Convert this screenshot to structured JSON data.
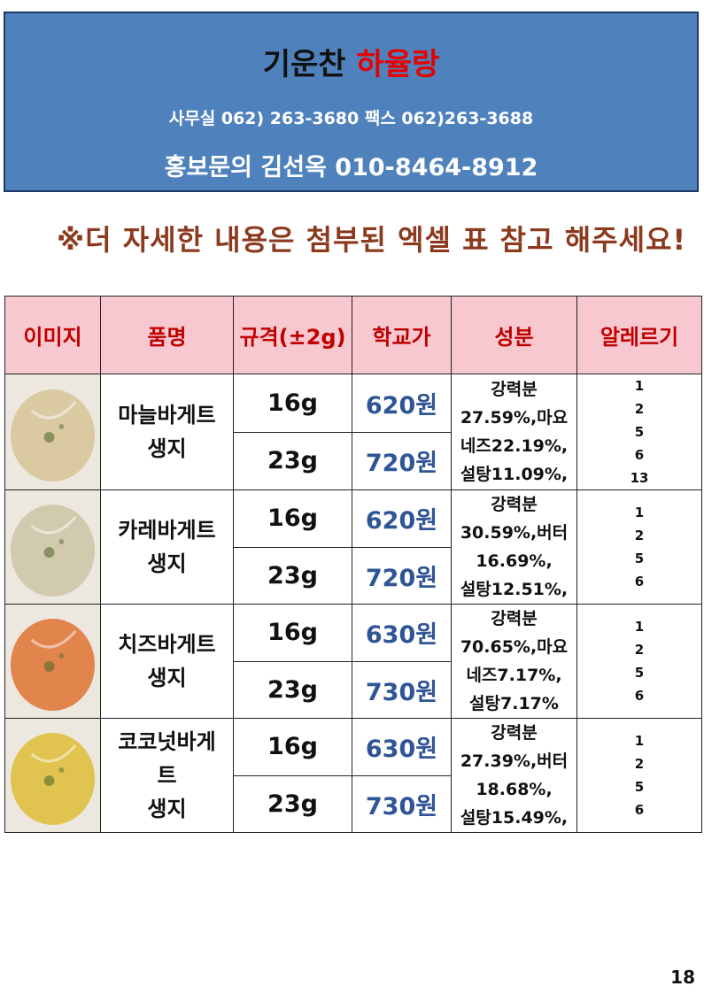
{
  "header": {
    "title_main": "기운찬",
    "title_accent": "하율랑",
    "contact_line": "사무실 062) 263-3680 팩스 062)263-3688",
    "promo_line": "홍보문의 김선옥 010-8464-8912"
  },
  "notice": "※더 자세한 내용은 첨부된 엑셀 표 참고 해주세요!",
  "table": {
    "headers": [
      "이미지",
      "품명",
      "규격(±2g)",
      "학교가",
      "성분",
      "알레르기"
    ],
    "rows": [
      {
        "name": "마늘바게트\n생지",
        "specs": [
          {
            "size": "16g",
            "price": "620원"
          },
          {
            "size": "23g",
            "price": "720원"
          }
        ],
        "composition": "강력분\n27.59%,마요\n네즈22.19%,\n설탕11.09%,",
        "allergy": "1\n2\n5\n6\n13",
        "photo_tone": "#d9c79a"
      },
      {
        "name": "카레바게트\n생지",
        "specs": [
          {
            "size": "16g",
            "price": "620원"
          },
          {
            "size": "23g",
            "price": "720원"
          }
        ],
        "composition": "강력분\n30.59%,버터\n16.69%,\n설탕12.51%,",
        "allergy": "1\n2\n5\n6",
        "photo_tone": "#cfc7a8"
      },
      {
        "name": "치즈바게트\n생지",
        "specs": [
          {
            "size": "16g",
            "price": "630원"
          },
          {
            "size": "23g",
            "price": "730원"
          }
        ],
        "composition": "강력분\n70.65%,마요\n네즈7.17%,\n설탕7.17%",
        "allergy": "1\n2\n5\n6",
        "photo_tone": "#e07a3c"
      },
      {
        "name": "코코넛바게\n트\n생지",
        "specs": [
          {
            "size": "16g",
            "price": "630원"
          },
          {
            "size": "23g",
            "price": "730원"
          }
        ],
        "composition": "강력분\n27.39%,버터\n18.68%,\n설탕15.49%,",
        "allergy": "1\n2\n5\n6",
        "photo_tone": "#e0c040"
      }
    ]
  },
  "page_number": "18"
}
